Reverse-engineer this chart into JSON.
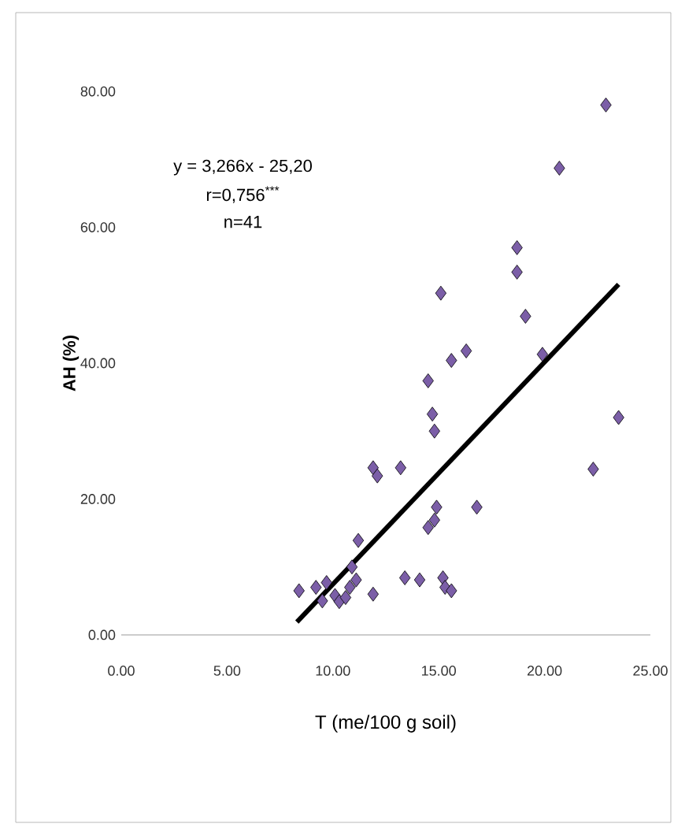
{
  "chart_data": {
    "type": "scatter",
    "xlabel": "T (me/100 g soil)",
    "ylabel": "AH (%)",
    "annotations": [
      "y = 3,266x - 25,20",
      "r=0,756$^{***}$",
      "n=41"
    ],
    "xlim": [
      0,
      25
    ],
    "ylim": [
      0,
      80
    ],
    "xticks": [
      {
        "value": 0,
        "label": "0.00"
      },
      {
        "value": 5,
        "label": "5.00"
      },
      {
        "value": 10,
        "label": "10.00"
      },
      {
        "value": 15,
        "label": "15.00"
      },
      {
        "value": 20,
        "label": "20.00"
      },
      {
        "value": 25,
        "label": "25.00"
      }
    ],
    "yticks": [
      {
        "value": 0,
        "label": "0.00"
      },
      {
        "value": 20,
        "label": "20.00"
      },
      {
        "value": 40,
        "label": "40.00"
      },
      {
        "value": 60,
        "label": "60.00"
      },
      {
        "value": 80,
        "label": "80.00"
      }
    ],
    "grid": false,
    "marker": "diamond",
    "series": [
      {
        "color": "#7b5ea7",
        "x": [
          8.4,
          9.2,
          9.7,
          10.1,
          10.3,
          10.8,
          11.1,
          10.9,
          11.2,
          11.9,
          11.9,
          12.1,
          13.2,
          13.4,
          14.1,
          14.5,
          14.8,
          14.9,
          16.8,
          15.2,
          15.3,
          15.6,
          14.5,
          14.7,
          15.6,
          16.3,
          15.1,
          18.7,
          18.7,
          19.1,
          19.9,
          20.7,
          22.9,
          23.5,
          22.3,
          14.8,
          9.5,
          10.6
        ],
        "values": [
          6.5,
          7,
          7.7,
          5.8,
          4.9,
          7,
          8.1,
          10,
          13.9,
          6,
          24.6,
          23.4,
          24.6,
          8.4,
          8.1,
          15.8,
          16.9,
          18.8,
          18.8,
          8.4,
          7,
          6.5,
          37.4,
          32.5,
          40.4,
          41.8,
          50.3,
          57,
          53.4,
          46.9,
          41.3,
          68.7,
          78,
          32,
          24.4,
          30,
          5,
          5.5
        ]
      },
      {
        "type": "line",
        "color": "#000000",
        "marker": "none",
        "x": [
          8.3,
          23.5
        ],
        "values": [
          1.9,
          51.6
        ]
      }
    ]
  }
}
